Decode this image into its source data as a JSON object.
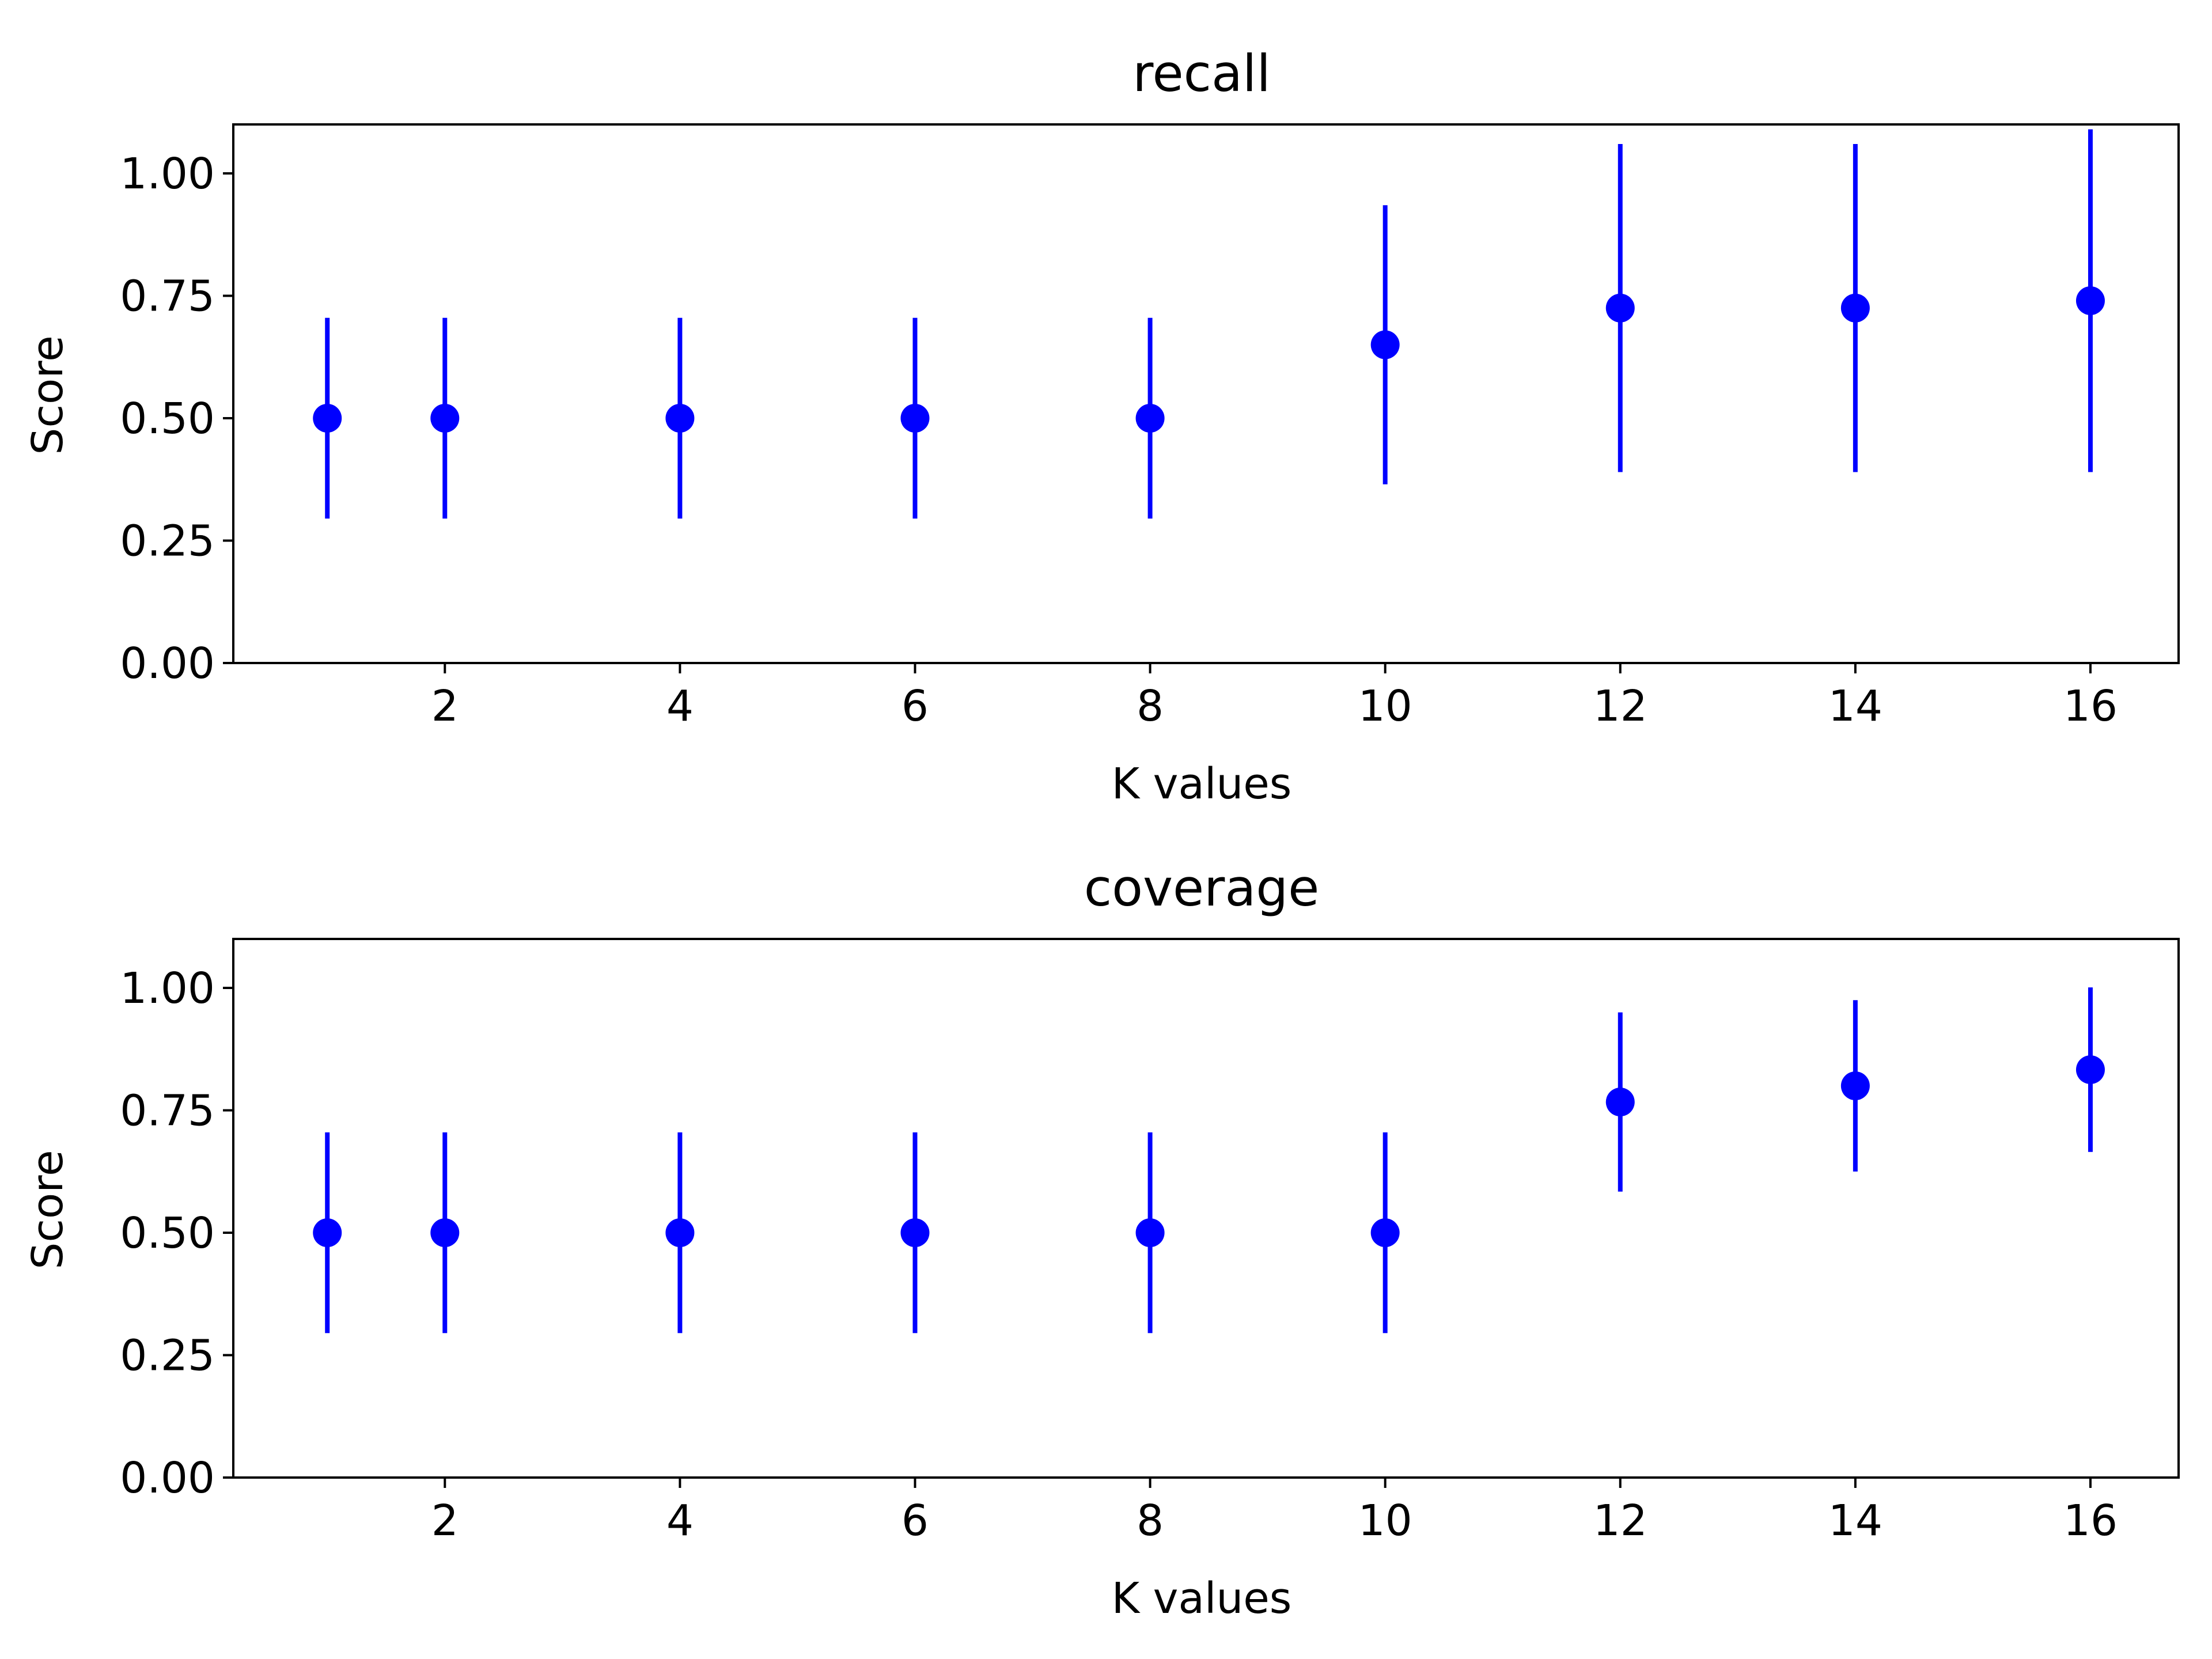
{
  "chart_data": [
    {
      "type": "scatter",
      "title": "recall",
      "xlabel": "K values",
      "ylabel": "Score",
      "xlim": [
        0.2,
        16.75
      ],
      "ylim": [
        0,
        1.1
      ],
      "xticks": [
        2,
        4,
        6,
        8,
        10,
        12,
        14,
        16
      ],
      "xtick_labels": [
        "2",
        "4",
        "6",
        "8",
        "10",
        "12",
        "14",
        "16"
      ],
      "yticks": [
        0,
        0.25,
        0.5,
        0.75,
        1.0
      ],
      "ytick_labels": [
        "0.00",
        "0.25",
        "0.50",
        "0.75",
        "1.00"
      ],
      "grid": false,
      "marker_color": "#0000ff",
      "series": [
        {
          "x": [
            1,
            2,
            4,
            6,
            8,
            10,
            12,
            14,
            16
          ],
          "y": [
            0.5,
            0.5,
            0.5,
            0.5,
            0.5,
            0.65,
            0.725,
            0.725,
            0.74
          ],
          "yerr": [
            0.205,
            0.205,
            0.205,
            0.205,
            0.205,
            0.285,
            0.335,
            0.335,
            0.35
          ]
        }
      ]
    },
    {
      "type": "scatter",
      "title": "coverage",
      "xlabel": "K values",
      "ylabel": "Score",
      "xlim": [
        0.2,
        16.75
      ],
      "ylim": [
        0,
        1.1
      ],
      "xticks": [
        2,
        4,
        6,
        8,
        10,
        12,
        14,
        16
      ],
      "xtick_labels": [
        "2",
        "4",
        "6",
        "8",
        "10",
        "12",
        "14",
        "16"
      ],
      "yticks": [
        0,
        0.25,
        0.5,
        0.75,
        1.0
      ],
      "ytick_labels": [
        "0.00",
        "0.25",
        "0.50",
        "0.75",
        "1.00"
      ],
      "grid": false,
      "marker_color": "#0000ff",
      "series": [
        {
          "x": [
            1,
            2,
            4,
            6,
            8,
            10,
            12,
            14,
            16
          ],
          "y": [
            0.5,
            0.5,
            0.5,
            0.5,
            0.5,
            0.5,
            0.767,
            0.8,
            0.833
          ],
          "yerr": [
            0.205,
            0.205,
            0.205,
            0.205,
            0.205,
            0.205,
            0.183,
            0.175,
            0.168
          ]
        }
      ]
    }
  ]
}
